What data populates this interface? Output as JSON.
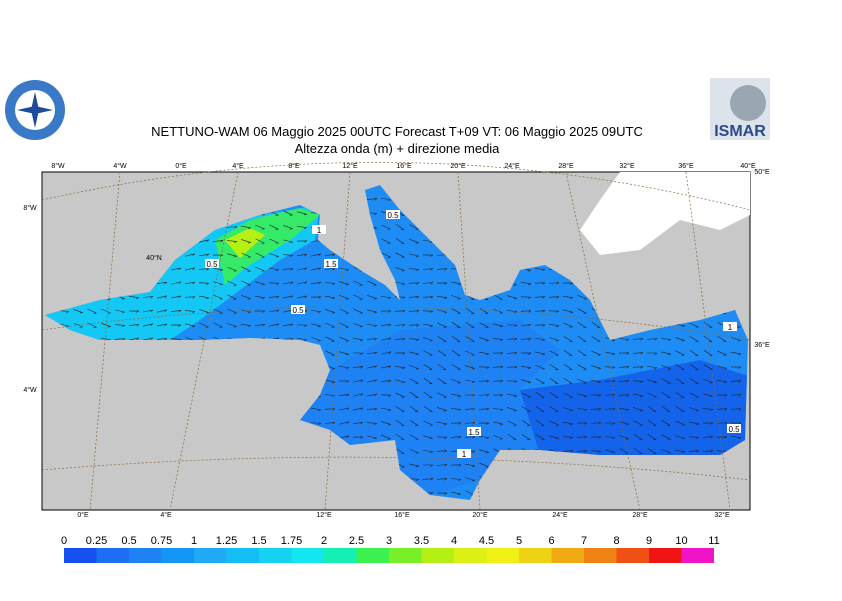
{
  "header": {
    "title": "NETTUNO-WAM  06   Maggio  2025 00UTC Forecast T+09 VT: 06   Maggio  2025 09UTC",
    "subtitle": "Altezza onda (m) + direzione media",
    "right_logo": "ISMAR"
  },
  "map": {
    "top_labels": [
      "8°W",
      "4°W",
      "0°E",
      "4°E",
      "8°E",
      "12°E",
      "16°E",
      "20°E",
      "24°E",
      "28°E",
      "32°E",
      "36°E",
      "40°E"
    ],
    "bottom_labels": [
      "0°E",
      "4°E",
      "12°E",
      "16°E",
      "20°E",
      "24°E",
      "28°E",
      "32°E"
    ],
    "side_labels": [
      "8°W",
      "4°W",
      "40°N",
      "50°E",
      "36°E"
    ],
    "contour_labels": [
      "0.5",
      "1",
      "0.5",
      "1.5",
      "0.5",
      "1.5",
      "1",
      "0.5",
      "1"
    ]
  },
  "colorbar": {
    "levels": [
      0,
      0.25,
      0.5,
      0.75,
      1,
      1.25,
      1.5,
      1.75,
      2,
      2.5,
      3,
      3.5,
      4,
      4.5,
      5,
      6,
      7,
      8,
      9,
      10,
      11
    ],
    "colors": [
      "#1450f0",
      "#1e6ef5",
      "#1e82f5",
      "#1496f5",
      "#1eaaf5",
      "#14bef5",
      "#14d2f0",
      "#14e6f0",
      "#14f0b4",
      "#3cf050",
      "#78f028",
      "#b4f014",
      "#dcf014",
      "#f0f014",
      "#f0d214",
      "#f0aa14",
      "#f08214",
      "#f05014",
      "#f01414",
      "#f014c8"
    ]
  }
}
